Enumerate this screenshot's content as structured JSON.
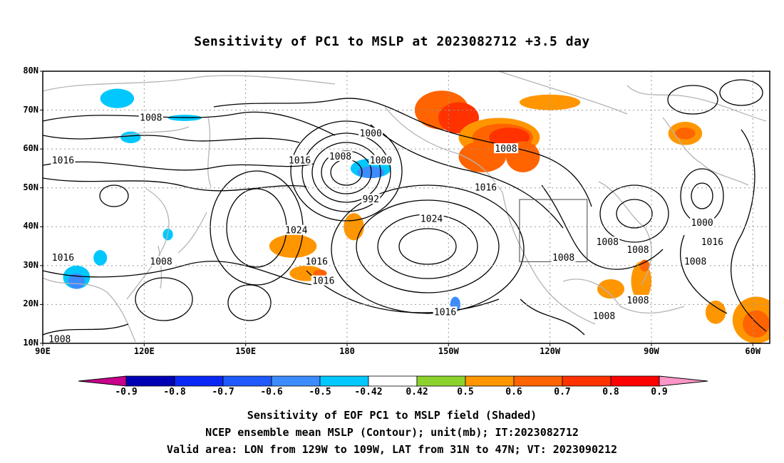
{
  "title": "Sensitivity of PC1 to MSLP at 2023082712 +3.5 day",
  "map": {
    "lon_range": [
      90,
      305
    ],
    "lat_range": [
      10,
      80
    ],
    "grid": true,
    "lat_labels": [
      {
        "lat": 80,
        "text": "80N"
      },
      {
        "lat": 70,
        "text": "70N"
      },
      {
        "lat": 60,
        "text": "60N"
      },
      {
        "lat": 50,
        "text": "50N"
      },
      {
        "lat": 40,
        "text": "40N"
      },
      {
        "lat": 30,
        "text": "30N"
      },
      {
        "lat": 20,
        "text": "20N"
      },
      {
        "lat": 10,
        "text": "10N"
      }
    ],
    "lon_labels": [
      {
        "lon": 90,
        "text": "90E"
      },
      {
        "lon": 120,
        "text": "120E"
      },
      {
        "lon": 150,
        "text": "150E"
      },
      {
        "lon": 180,
        "text": "180"
      },
      {
        "lon": 210,
        "text": "150W"
      },
      {
        "lon": 240,
        "text": "120W"
      },
      {
        "lon": 270,
        "text": "90W"
      },
      {
        "lon": 300,
        "text": "60W"
      }
    ],
    "valid_box": {
      "lon": [
        231,
        251
      ],
      "lat": [
        31,
        47
      ]
    },
    "contour_labels": [
      {
        "lon": 122,
        "lat": 68,
        "text": "1008"
      },
      {
        "lon": 187,
        "lat": 64,
        "text": "1000"
      },
      {
        "lon": 178,
        "lat": 58,
        "text": "1008"
      },
      {
        "lon": 227,
        "lat": 60,
        "text": "1008"
      },
      {
        "lon": 190,
        "lat": 57,
        "text": "1000"
      },
      {
        "lon": 96,
        "lat": 57,
        "text": "1016"
      },
      {
        "lon": 166,
        "lat": 57,
        "text": "1016"
      },
      {
        "lon": 221,
        "lat": 50,
        "text": "1016"
      },
      {
        "lon": 187,
        "lat": 47,
        "text": "992"
      },
      {
        "lon": 205,
        "lat": 42,
        "text": "1024"
      },
      {
        "lon": 165,
        "lat": 39,
        "text": "1024"
      },
      {
        "lon": 285,
        "lat": 41,
        "text": "1000"
      },
      {
        "lon": 288,
        "lat": 36,
        "text": "1016"
      },
      {
        "lon": 257,
        "lat": 36,
        "text": "1008"
      },
      {
        "lon": 266,
        "lat": 34,
        "text": "1008"
      },
      {
        "lon": 96,
        "lat": 32,
        "text": "1016"
      },
      {
        "lon": 125,
        "lat": 31,
        "text": "1008"
      },
      {
        "lon": 171,
        "lat": 31,
        "text": "1016"
      },
      {
        "lon": 244,
        "lat": 32,
        "text": "1008"
      },
      {
        "lon": 283,
        "lat": 31,
        "text": "1008"
      },
      {
        "lon": 173,
        "lat": 26,
        "text": "1016"
      },
      {
        "lon": 266,
        "lat": 21,
        "text": "1008"
      },
      {
        "lon": 209,
        "lat": 18,
        "text": "1016"
      },
      {
        "lon": 256,
        "lat": 17,
        "text": "1008"
      },
      {
        "lon": 95,
        "lat": 11,
        "text": "1008"
      }
    ],
    "shaded_regions": [
      {
        "lon": 208,
        "lat": 70,
        "rlon": 8,
        "rlat": 5,
        "value": 0.6
      },
      {
        "lon": 213,
        "lat": 68,
        "rlon": 6,
        "rlat": 4,
        "value": 0.7
      },
      {
        "lon": 225,
        "lat": 63,
        "rlon": 12,
        "rlat": 5,
        "value": 0.5
      },
      {
        "lon": 226,
        "lat": 63,
        "rlon": 9,
        "rlat": 3.5,
        "value": 0.6
      },
      {
        "lon": 228,
        "lat": 63,
        "rlon": 6,
        "rlat": 2.5,
        "value": 0.7
      },
      {
        "lon": 220,
        "lat": 58,
        "rlon": 7,
        "rlat": 4,
        "value": 0.6
      },
      {
        "lon": 232,
        "lat": 58,
        "rlon": 5,
        "rlat": 4,
        "value": 0.6
      },
      {
        "lon": 240,
        "lat": 72,
        "rlon": 9,
        "rlat": 2,
        "value": 0.5
      },
      {
        "lon": 280,
        "lat": 64,
        "rlon": 5,
        "rlat": 3,
        "value": 0.5
      },
      {
        "lon": 280,
        "lat": 64,
        "rlon": 3,
        "rlat": 1.5,
        "value": 0.6
      },
      {
        "lon": 182,
        "lat": 40,
        "rlon": 3,
        "rlat": 3.5,
        "value": 0.5
      },
      {
        "lon": 164,
        "lat": 35,
        "rlon": 7,
        "rlat": 3,
        "value": 0.5
      },
      {
        "lon": 168,
        "lat": 28,
        "rlon": 5,
        "rlat": 2,
        "value": 0.5
      },
      {
        "lon": 172,
        "lat": 28,
        "rlon": 2,
        "rlat": 1,
        "value": 0.6
      },
      {
        "lon": 267,
        "lat": 26,
        "rlon": 3,
        "rlat": 5,
        "value": 0.5
      },
      {
        "lon": 268,
        "lat": 30,
        "rlon": 1.5,
        "rlat": 1.5,
        "value": 0.6
      },
      {
        "lon": 258,
        "lat": 24,
        "rlon": 4,
        "rlat": 2.5,
        "value": 0.5
      },
      {
        "lon": 289,
        "lat": 18,
        "rlon": 3,
        "rlat": 3,
        "value": 0.5
      },
      {
        "lon": 301,
        "lat": 16,
        "rlon": 7,
        "rlat": 6,
        "value": 0.5
      },
      {
        "lon": 301,
        "lat": 15,
        "rlon": 4,
        "rlat": 3.5,
        "value": 0.6
      },
      {
        "lon": 187,
        "lat": 55,
        "rlon": 6,
        "rlat": 2.5,
        "value": -0.5
      },
      {
        "lon": 187,
        "lat": 54,
        "rlon": 4,
        "rlat": 1.5,
        "value": -0.6
      },
      {
        "lon": 112,
        "lat": 73,
        "rlon": 5,
        "rlat": 2.5,
        "value": -0.5
      },
      {
        "lon": 116,
        "lat": 63,
        "rlon": 3,
        "rlat": 1.5,
        "value": -0.5
      },
      {
        "lon": 132,
        "lat": 68,
        "rlon": 5,
        "rlat": 0.8,
        "value": -0.5
      },
      {
        "lon": 100,
        "lat": 27,
        "rlon": 4,
        "rlat": 3,
        "value": -0.5
      },
      {
        "lon": 100,
        "lat": 26,
        "rlon": 2.5,
        "rlat": 2,
        "value": -0.6
      },
      {
        "lon": 107,
        "lat": 32,
        "rlon": 2,
        "rlat": 2,
        "value": -0.5
      },
      {
        "lon": 212,
        "lat": 20,
        "rlon": 1.5,
        "rlat": 2,
        "value": -0.6
      },
      {
        "lon": 127,
        "lat": 38,
        "rlon": 1.5,
        "rlat": 1.5,
        "value": -0.5
      }
    ]
  },
  "colorbar": {
    "labels": [
      "-0.9",
      "-0.8",
      "-0.7",
      "-0.6",
      "-0.5",
      "-0.42",
      "0.42",
      "0.5",
      "0.6",
      "0.7",
      "0.8",
      "0.9"
    ],
    "colors": [
      "#0000b4",
      "#0a28f5",
      "#1e5aff",
      "#3c8cff",
      "#00c8ff",
      "#ffffff",
      "#8cd22d",
      "#ff9600",
      "#ff6400",
      "#ff3200",
      "#ff0000"
    ],
    "low_color": "#c8008c",
    "high_color": "#ff96c8"
  },
  "footer": {
    "line1": "Sensitivity of EOF PC1 to MSLP field (Shaded)",
    "line2": "NCEP ensemble mean MSLP (Contour); unit(mb); IT:2023082712",
    "line3": "Valid area: LON from 129W to 109W, LAT from 31N to 47N; VT: 2023090212"
  },
  "chart_data": {
    "type": "heatmap",
    "title": "Sensitivity of PC1 to MSLP at 2023082712 +3.5 day",
    "xlabel": "",
    "ylabel": "",
    "x_ticks": [
      "90E",
      "120E",
      "150E",
      "180",
      "150W",
      "120W",
      "90W",
      "60W"
    ],
    "y_ticks": [
      "10N",
      "20N",
      "30N",
      "40N",
      "50N",
      "60N",
      "70N",
      "80N"
    ],
    "color_levels": [
      -0.9,
      -0.8,
      -0.7,
      -0.6,
      -0.5,
      -0.42,
      0.42,
      0.5,
      0.6,
      0.7,
      0.8,
      0.9
    ]
  }
}
